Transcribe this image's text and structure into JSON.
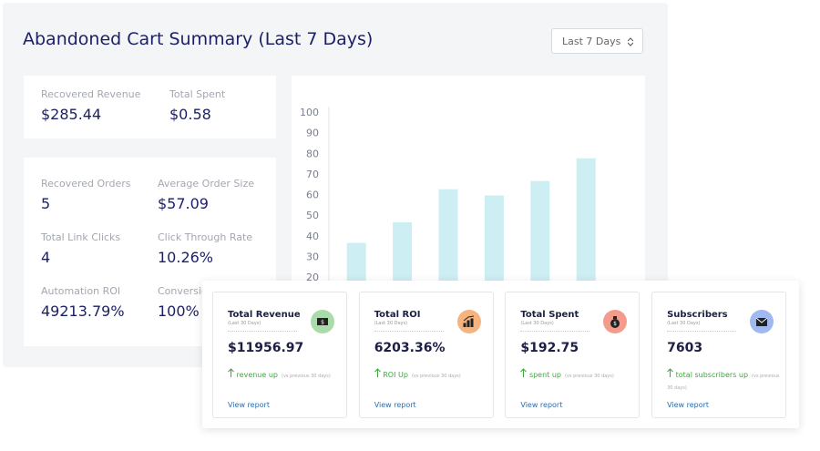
{
  "header": {
    "title": "Abandoned Cart Summary (Last 7 Days)",
    "select": "Last 7 Days"
  },
  "summary_top": [
    {
      "label": "Recovered Revenue",
      "value": "$285.44"
    },
    {
      "label": "Total Spent",
      "value": "$0.58"
    }
  ],
  "summary_main": [
    {
      "label": "Recovered Orders",
      "value": "5"
    },
    {
      "label": "Average Order Size",
      "value": "$57.09"
    },
    {
      "label": "Total Link Clicks",
      "value": "4"
    },
    {
      "label": "Click Through Rate",
      "value": "10.26%"
    },
    {
      "label": "Automation ROI",
      "value": "49213.79%"
    },
    {
      "label": "Conversion Rate",
      "value": "100%"
    }
  ],
  "chart_data": {
    "type": "bar",
    "categories": [
      null,
      null,
      null,
      null,
      null,
      null
    ],
    "values": [
      37,
      47,
      63,
      60,
      67,
      78
    ],
    "color": "#cdeef3",
    "ylim": [
      0,
      100
    ],
    "yticks": [
      20,
      30,
      40,
      50,
      60,
      70,
      80,
      90,
      100
    ]
  },
  "cards": [
    {
      "title": "Total Revenue",
      "subtitle": "(Last 30 Days)",
      "value": "$11956.97",
      "trend": "revenue up",
      "note": "(vs previous 30 days)",
      "link": "View report",
      "color": "#a9dcaa"
    },
    {
      "title": "Total ROI",
      "subtitle": "(Last 30 Days)",
      "value": "6203.36%",
      "trend": "ROI Up",
      "note": "(vs previous 30 days)",
      "link": "View report",
      "color": "#f7b37f"
    },
    {
      "title": "Total Spent",
      "subtitle": "(Last 30 Days)",
      "value": "$192.75",
      "trend": "spent up",
      "note": "(vs previous 30 days)",
      "link": "View report",
      "color": "#f39c8c"
    },
    {
      "title": "Subscribers",
      "subtitle": "(Last 30 Days)",
      "value": "7603",
      "trend": "total subscribers up",
      "note": "(vs previous 30 days)",
      "link": "View report",
      "color": "#a0b9f1"
    }
  ]
}
